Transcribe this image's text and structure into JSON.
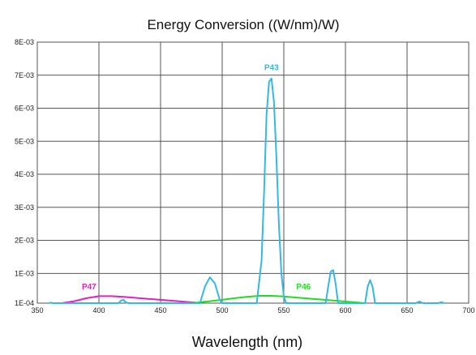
{
  "chart_data": {
    "type": "line",
    "title": "Energy Conversion ((W/nm)/W)",
    "xlabel": "Wavelength (nm)",
    "ylabel": "",
    "xlim": [
      350,
      700
    ],
    "ylim": [
      0.0001,
      0.008
    ],
    "grid": true,
    "x_ticks": [
      {
        "value": 350,
        "label": "350"
      },
      {
        "value": 400,
        "label": "400"
      },
      {
        "value": 450,
        "label": "450"
      },
      {
        "value": 500,
        "label": "500"
      },
      {
        "value": 550,
        "label": "550"
      },
      {
        "value": 600,
        "label": "600"
      },
      {
        "value": 650,
        "label": "650"
      },
      {
        "value": 700,
        "label": "700"
      }
    ],
    "y_ticks": [
      {
        "value": 0.0001,
        "label": "1E-04"
      },
      {
        "value": 0.001,
        "label": "1E-03"
      },
      {
        "value": 0.002,
        "label": "2E-03"
      },
      {
        "value": 0.003,
        "label": "3E-03"
      },
      {
        "value": 0.004,
        "label": "4E-03"
      },
      {
        "value": 0.005,
        "label": "5E-03"
      },
      {
        "value": 0.006,
        "label": "6E-03"
      },
      {
        "value": 0.007,
        "label": "7E-03"
      },
      {
        "value": 0.008,
        "label": "8E-03"
      }
    ],
    "series": [
      {
        "name": "P47",
        "color": "#e020c8",
        "label_at": [
          392,
          0.00052
        ],
        "points": [
          [
            370,
            0.0001
          ],
          [
            380,
            0.00016
          ],
          [
            390,
            0.00025
          ],
          [
            400,
            0.00031
          ],
          [
            410,
            0.00031
          ],
          [
            420,
            0.00029
          ],
          [
            430,
            0.00026
          ],
          [
            440,
            0.00023
          ],
          [
            450,
            0.0002
          ],
          [
            460,
            0.00017
          ],
          [
            470,
            0.00014
          ],
          [
            478,
            0.00012
          ],
          [
            480,
            0.0001
          ]
        ]
      },
      {
        "name": "P46",
        "color": "#22dd22",
        "label_at": [
          566,
          0.00052
        ],
        "points": [
          [
            470,
            0.0001
          ],
          [
            480,
            0.00012
          ],
          [
            490,
            0.00016
          ],
          [
            500,
            0.0002
          ],
          [
            510,
            0.00025
          ],
          [
            520,
            0.00029
          ],
          [
            530,
            0.00032
          ],
          [
            540,
            0.00032
          ],
          [
            550,
            0.0003
          ],
          [
            560,
            0.00027
          ],
          [
            570,
            0.00024
          ],
          [
            580,
            0.00021
          ],
          [
            590,
            0.00018
          ],
          [
            600,
            0.00015
          ],
          [
            610,
            0.00012
          ],
          [
            615,
            0.0001
          ]
        ]
      },
      {
        "name": "P43",
        "color": "#33b8e8",
        "label_at": [
          540,
          0.00715
        ],
        "points": [
          [
            360,
            0.0001
          ],
          [
            361,
            0.00012
          ],
          [
            362,
            0.0001
          ],
          [
            416,
            0.0001
          ],
          [
            418,
            0.00018
          ],
          [
            420,
            0.0002
          ],
          [
            422,
            0.00012
          ],
          [
            424,
            0.0001
          ],
          [
            482,
            0.0001
          ],
          [
            486,
            0.0006
          ],
          [
            490,
            0.00088
          ],
          [
            494,
            0.0007
          ],
          [
            498,
            0.0002
          ],
          [
            500,
            0.0001
          ],
          [
            528,
            0.0001
          ],
          [
            532,
            0.0014
          ],
          [
            534,
            0.0035
          ],
          [
            536,
            0.0058
          ],
          [
            538,
            0.0068
          ],
          [
            540,
            0.0069
          ],
          [
            542,
            0.0062
          ],
          [
            544,
            0.0045
          ],
          [
            546,
            0.0025
          ],
          [
            548,
            0.001
          ],
          [
            550,
            0.0003
          ],
          [
            552,
            0.0001
          ],
          [
            584,
            0.0001
          ],
          [
            586,
            0.0006
          ],
          [
            588,
            0.00105
          ],
          [
            590,
            0.0011
          ],
          [
            592,
            0.0007
          ],
          [
            594,
            0.0001
          ],
          [
            616,
            0.0001
          ],
          [
            618,
            0.0006
          ],
          [
            620,
            0.0008
          ],
          [
            622,
            0.0006
          ],
          [
            624,
            0.0001
          ],
          [
            657,
            0.0001
          ],
          [
            660,
            0.00015
          ],
          [
            663,
            0.0001
          ],
          [
            675,
            0.0001
          ],
          [
            678,
            0.00013
          ],
          [
            680,
            0.0001
          ]
        ]
      }
    ]
  }
}
